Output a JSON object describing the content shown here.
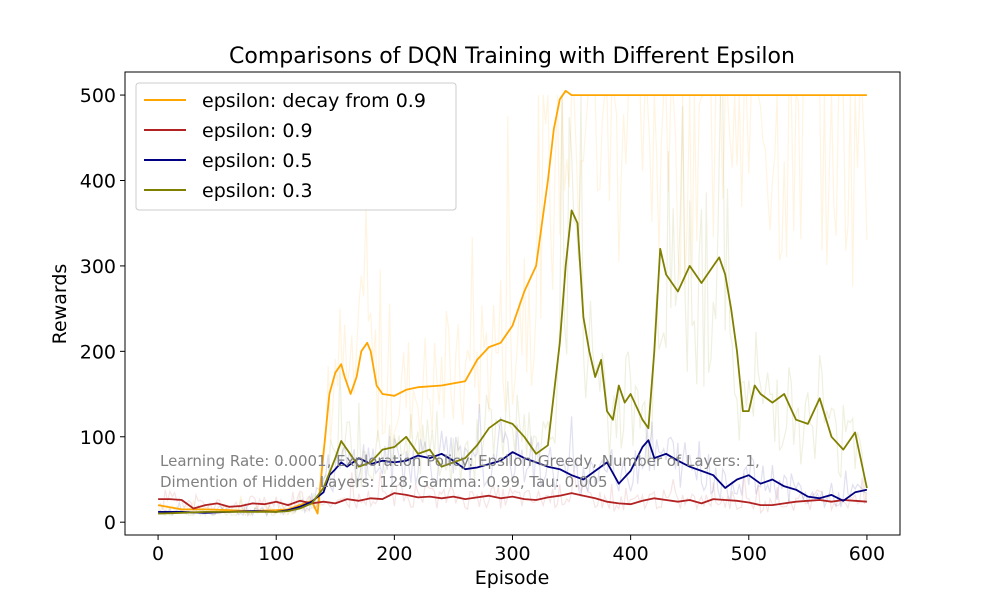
{
  "chart_data": {
    "type": "line",
    "title": "Comparisons of DQN Training with Different Epsilon",
    "xlabel": "Episode",
    "ylabel": "Rewards",
    "xlim": [
      -28,
      628
    ],
    "ylim": [
      -15,
      527
    ],
    "xticks": [
      0,
      100,
      200,
      300,
      400,
      500,
      600
    ],
    "yticks": [
      0,
      100,
      200,
      300,
      400,
      500
    ],
    "grid": false,
    "legend_position": "upper-left",
    "annotation": {
      "line1": "Learning Rate: 0.0001, Exploration Policy: Epsilon-Greedy, Number of Layers: 1,",
      "line2": "Dimention of Hidden Layers: 128, Gamma: 0.99, Tau: 0.005",
      "color": "#808080"
    },
    "series": [
      {
        "name": "epsilon: decay from 0.9",
        "color": "#FFA500",
        "x": [
          0,
          20,
          40,
          60,
          80,
          100,
          110,
          120,
          130,
          135,
          140,
          145,
          150,
          155,
          158,
          163,
          168,
          172,
          177,
          180,
          185,
          190,
          200,
          210,
          220,
          240,
          260,
          270,
          280,
          290,
          300,
          310,
          320,
          330,
          335,
          340,
          345,
          350,
          360,
          380,
          400,
          450,
          500,
          550,
          600
        ],
        "values": [
          20,
          15,
          15,
          14,
          13,
          14,
          15,
          20,
          25,
          10,
          80,
          150,
          175,
          185,
          170,
          150,
          170,
          200,
          210,
          200,
          160,
          150,
          148,
          155,
          158,
          160,
          165,
          190,
          205,
          210,
          230,
          270,
          300,
          400,
          460,
          495,
          505,
          500,
          500,
          500,
          500,
          500,
          500,
          500,
          500
        ]
      },
      {
        "name": "epsilon: 0.9",
        "color": "#B22222",
        "x": [
          0,
          10,
          20,
          30,
          40,
          50,
          60,
          70,
          80,
          90,
          100,
          110,
          120,
          130,
          140,
          150,
          160,
          170,
          180,
          190,
          200,
          210,
          220,
          230,
          240,
          250,
          260,
          270,
          280,
          290,
          300,
          310,
          320,
          330,
          340,
          350,
          360,
          370,
          380,
          390,
          400,
          410,
          420,
          430,
          440,
          450,
          460,
          470,
          480,
          490,
          500,
          510,
          520,
          530,
          540,
          550,
          560,
          570,
          580,
          590,
          600
        ],
        "values": [
          27,
          27,
          26,
          16,
          20,
          22,
          18,
          19,
          22,
          21,
          24,
          20,
          25,
          22,
          24,
          22,
          27,
          25,
          28,
          27,
          34,
          32,
          29,
          30,
          28,
          30,
          27,
          29,
          31,
          28,
          30,
          27,
          26,
          29,
          31,
          34,
          31,
          28,
          24,
          22,
          21,
          25,
          28,
          26,
          24,
          26,
          22,
          27,
          26,
          25,
          23,
          20,
          20,
          22,
          24,
          25,
          26,
          24,
          26,
          25,
          24
        ]
      },
      {
        "name": "epsilon: 0.5",
        "color": "#000080",
        "x": [
          0,
          20,
          40,
          60,
          80,
          100,
          110,
          120,
          130,
          140,
          145,
          150,
          155,
          160,
          170,
          180,
          190,
          200,
          210,
          220,
          230,
          240,
          250,
          260,
          270,
          280,
          290,
          300,
          310,
          320,
          330,
          340,
          350,
          360,
          370,
          380,
          390,
          400,
          410,
          415,
          420,
          430,
          440,
          450,
          460,
          470,
          480,
          490,
          500,
          510,
          520,
          530,
          540,
          550,
          560,
          570,
          580,
          590,
          600
        ],
        "values": [
          12,
          12,
          11,
          12,
          13,
          12,
          14,
          18,
          24,
          35,
          55,
          62,
          70,
          65,
          75,
          68,
          72,
          70,
          72,
          78,
          75,
          80,
          72,
          62,
          64,
          68,
          72,
          82,
          75,
          70,
          65,
          62,
          55,
          50,
          60,
          70,
          45,
          60,
          88,
          96,
          75,
          80,
          72,
          65,
          60,
          55,
          40,
          50,
          55,
          45,
          50,
          42,
          38,
          30,
          28,
          32,
          25,
          35,
          38
        ]
      },
      {
        "name": "epsilon: 0.3",
        "color": "#808000",
        "x": [
          0,
          20,
          40,
          60,
          80,
          100,
          110,
          120,
          130,
          140,
          150,
          155,
          165,
          170,
          180,
          190,
          200,
          210,
          220,
          230,
          240,
          250,
          260,
          270,
          280,
          290,
          300,
          310,
          320,
          330,
          340,
          345,
          350,
          355,
          360,
          365,
          370,
          375,
          380,
          385,
          390,
          395,
          400,
          410,
          415,
          420,
          425,
          430,
          440,
          450,
          460,
          470,
          475,
          480,
          485,
          490,
          495,
          500,
          505,
          510,
          520,
          530,
          540,
          550,
          560,
          570,
          580,
          590,
          600
        ],
        "values": [
          10,
          11,
          12,
          12,
          12,
          12,
          13,
          16,
          22,
          40,
          75,
          95,
          75,
          65,
          70,
          85,
          88,
          100,
          80,
          85,
          65,
          70,
          75,
          90,
          110,
          120,
          115,
          100,
          80,
          90,
          210,
          300,
          365,
          350,
          240,
          200,
          170,
          190,
          130,
          120,
          160,
          140,
          150,
          120,
          110,
          200,
          320,
          290,
          270,
          300,
          280,
          300,
          310,
          290,
          250,
          200,
          130,
          130,
          160,
          150,
          140,
          150,
          120,
          115,
          145,
          100,
          85,
          105,
          40
        ]
      }
    ]
  }
}
